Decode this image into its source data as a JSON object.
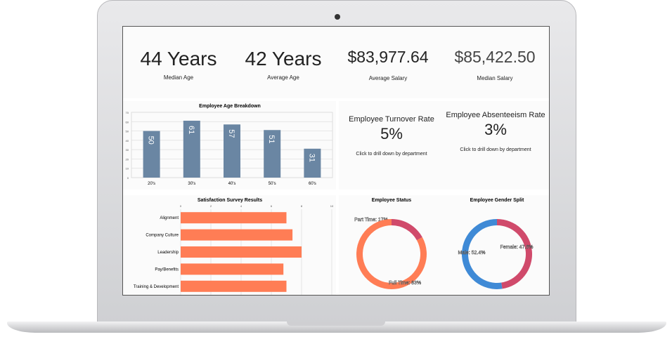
{
  "kpis": [
    {
      "value": "44 Years",
      "label": "Median Age"
    },
    {
      "value": "42 Years",
      "label": "Average Age"
    },
    {
      "value": "$83,977.64",
      "label": "Average Salary"
    },
    {
      "value": "$85,422.50",
      "label": "Median Salary"
    }
  ],
  "rates": [
    {
      "title": "Employee Turnover Rate",
      "value": "5%",
      "link": "Click to drill down by department"
    },
    {
      "title": "Employee Absenteeism Rate",
      "value": "3%",
      "link": "Click to drill down by department"
    }
  ],
  "colors": {
    "bar": "#6a86a3",
    "survey": "#ff7d55",
    "part": "#d04a6b",
    "full": "#ff7d55",
    "male": "#3f8ad6",
    "female": "#d04a6b"
  },
  "chart_data": [
    {
      "type": "bar",
      "title": "Employee Age Breakdown",
      "categories": [
        "20's",
        "30's",
        "40's",
        "50's",
        "60's"
      ],
      "values": [
        50,
        61,
        57,
        51,
        31
      ],
      "ylim": [
        0,
        70
      ],
      "yticks": [
        "0",
        "10",
        "20",
        "30",
        "40",
        "50",
        "60",
        "70"
      ]
    },
    {
      "type": "bar",
      "orientation": "horizontal",
      "title": "Satisfaction Survey Results",
      "categories": [
        "Alignment",
        "Company Culture",
        "Leadership",
        "Pay/Benefits",
        "Training & Development"
      ],
      "values": [
        7,
        7.4,
        8,
        6.8,
        7
      ],
      "xlim": [
        0,
        10
      ],
      "xticks": [
        "0",
        "2",
        "4",
        "6",
        "8",
        "10"
      ]
    },
    {
      "type": "pie",
      "title": "Employee Status",
      "labels": [
        "Part Time: 17%",
        "Full Time: 83%"
      ],
      "values": [
        17,
        83
      ]
    },
    {
      "type": "pie",
      "title": "Employee Gender Split",
      "labels": [
        "Female: 47.6%",
        "Male: 52.4%"
      ],
      "values": [
        47.6,
        52.4
      ]
    }
  ]
}
